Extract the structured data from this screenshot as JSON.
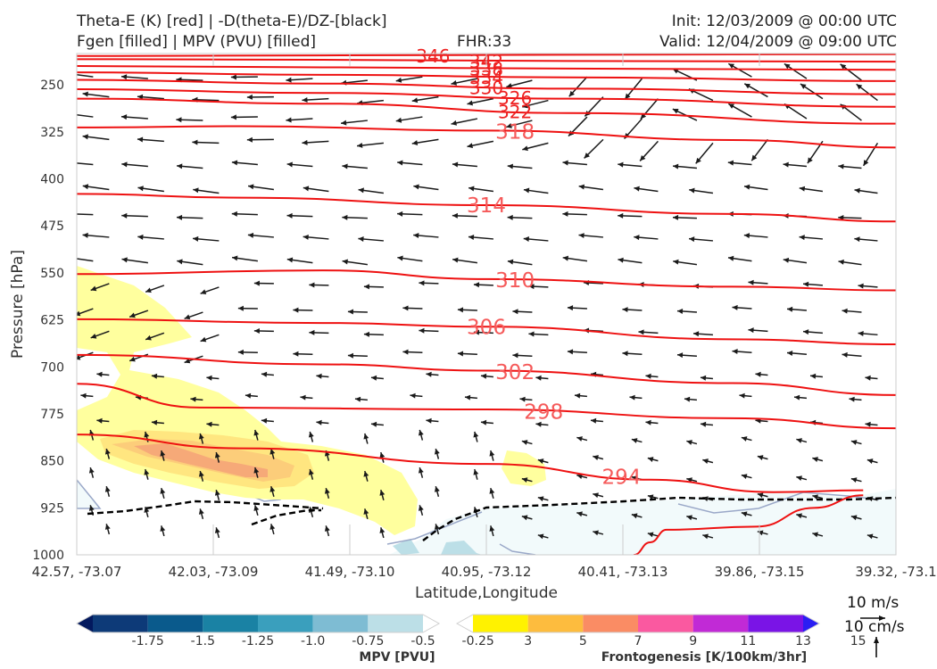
{
  "header": {
    "title_line1": "Theta-E (K) [red] | -D(theta-E)/DZ-[black]",
    "title_line2": "Fgen [filled] | MPV (PVU) [filled]",
    "fhr": "FHR:33",
    "init": "Init: 12/03/2009 @ 00:00 UTC",
    "valid": "Valid: 12/04/2009 @ 09:00 UTC"
  },
  "chart_data": {
    "type": "cross-section",
    "ylabel": "Pressure [hPa]",
    "xlabel": "Latitude,Longitude",
    "y_axis": {
      "scale": "linear, inverted",
      "ylim": [
        1000,
        200
      ],
      "ticks": [
        250,
        325,
        400,
        475,
        550,
        625,
        700,
        775,
        850,
        925,
        1000
      ]
    },
    "x_axis": {
      "ticks": [
        "42.57, -73.07",
        "42.03, -73.09",
        "41.49, -73.10",
        "40.95, -73.12",
        "40.41, -73.13",
        "39.86, -73.15",
        "39.32, -73.1"
      ]
    },
    "theta_e_contours": {
      "color": "#ee1111",
      "series": [
        {
          "name": "346",
          "x": [
            0,
            0.3,
            0.6,
            1.0
          ],
          "p": [
            204,
            203,
            202,
            201
          ]
        },
        {
          "name": "342",
          "x": [
            0,
            0.3,
            0.6,
            1.0
          ],
          "p": [
            209,
            210,
            212,
            213
          ]
        },
        {
          "name": "338",
          "x": [
            0,
            0.3,
            0.6,
            1.0
          ],
          "p": [
            220,
            222,
            224,
            226
          ]
        },
        {
          "name": "334",
          "x": [
            0,
            0.3,
            0.6,
            1.0
          ],
          "p": [
            230,
            234,
            238,
            244
          ]
        },
        {
          "name": "330",
          "x": [
            0,
            0.3,
            0.6,
            1.0
          ],
          "p": [
            242,
            248,
            256,
            265
          ]
        },
        {
          "name": "326",
          "x": [
            0,
            0.3,
            0.6,
            1.0
          ],
          "p": [
            257,
            263,
            272,
            285
          ]
        },
        {
          "name": "322",
          "x": [
            0,
            0.3,
            0.6,
            1.0
          ],
          "p": [
            272,
            280,
            295,
            312
          ]
        },
        {
          "name": "318",
          "x": [
            0,
            0.2,
            0.5,
            0.8,
            1.0
          ],
          "p": [
            318,
            316,
            323,
            338,
            350
          ]
        },
        {
          "name": "314",
          "x": [
            0,
            0.2,
            0.5,
            0.8,
            1.0
          ],
          "p": [
            424,
            430,
            442,
            456,
            468
          ]
        },
        {
          "name": "310",
          "x": [
            0,
            0.3,
            0.5,
            0.8,
            1.0
          ],
          "p": [
            552,
            546,
            560,
            572,
            578
          ]
        },
        {
          "name": "306",
          "x": [
            0,
            0.3,
            0.5,
            0.8,
            1.0
          ],
          "p": [
            624,
            630,
            636,
            656,
            664
          ]
        },
        {
          "name": "302",
          "x": [
            0,
            0.3,
            0.5,
            0.8,
            1.0
          ],
          "p": [
            681,
            696,
            706,
            726,
            745
          ]
        },
        {
          "name": "298",
          "x": [
            0,
            0.15,
            0.5,
            0.8,
            1.0
          ],
          "p": [
            727,
            765,
            768,
            782,
            798
          ]
        },
        {
          "name": "294",
          "x": [
            0,
            0.2,
            0.5,
            0.7,
            0.85,
            0.96
          ],
          "p": [
            808,
            830,
            855,
            880,
            900,
            897
          ]
        },
        {
          "name": "",
          "x": [
            0.68,
            0.7,
            0.72,
            0.83,
            0.9,
            0.96
          ],
          "p": [
            1000,
            980,
            960,
            955,
            925,
            905
          ]
        }
      ]
    },
    "dthetae_dz_contour": {
      "color": "#000000",
      "style": "dashed"
    },
    "fgen_fill_colors": [
      "#ffff9e",
      "#ffe680",
      "#fccd7a",
      "#f6a978"
    ],
    "mpv_fill_colors": [
      "#f2fafb",
      "#bcdfe7"
    ],
    "wind_arrows": {
      "legend_speed_1": "10 m/s",
      "legend_speed_2": "10 cm/s"
    },
    "mpv_colorbar": {
      "label": "MPV [PVU]",
      "colors": [
        "#03195e",
        "#0d3a78",
        "#0a5a8c",
        "#1a82a4",
        "#3a9fbd",
        "#7ebcd3",
        "#bcdfe7",
        "#ffffff"
      ],
      "ticks": [
        "-1.75",
        "-1.5",
        "-1.25",
        "-1.0",
        "-0.75",
        "-0.5",
        "-0.25"
      ]
    },
    "fgen_colorbar": {
      "label": "Frontogenesis [K/100km/3hr]",
      "colors": [
        "#ffffff",
        "#fff200",
        "#fdbc3e",
        "#fa8c64",
        "#fa59a0",
        "#c12ad6",
        "#7a14e6",
        "#2a1ef3"
      ],
      "ticks": [
        "3",
        "5",
        "7",
        "9",
        "11",
        "13",
        "15"
      ]
    }
  }
}
